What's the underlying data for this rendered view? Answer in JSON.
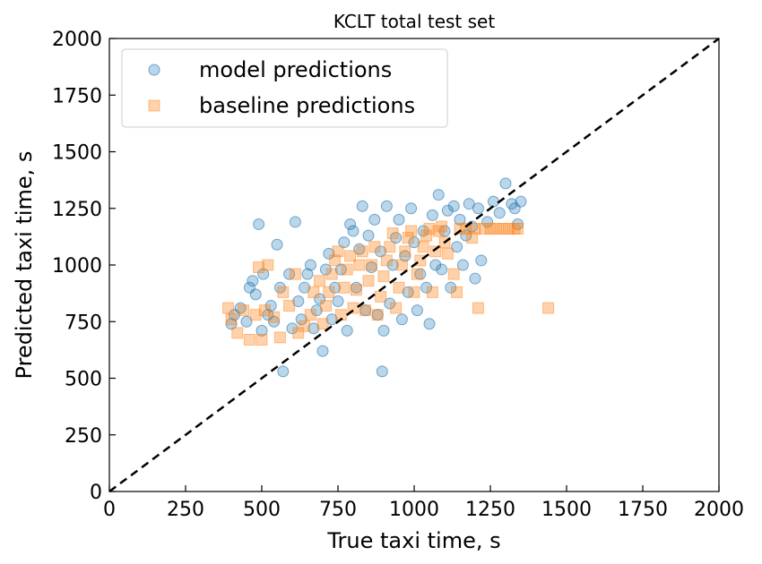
{
  "chart_data": {
    "type": "scatter",
    "title": "KCLT total test set",
    "xlabel": "True taxi time, s",
    "ylabel": "Predicted taxi time, s",
    "xlim": [
      0,
      2000
    ],
    "ylim": [
      0,
      2000
    ],
    "xticks": [
      "0",
      "250",
      "500",
      "750",
      "1000",
      "1250",
      "1500",
      "1750",
      "2000"
    ],
    "yticks": [
      "0",
      "250",
      "500",
      "750",
      "1000",
      "1250",
      "1500",
      "1750",
      "2000"
    ],
    "reference_line": {
      "type": "identity",
      "style": "dashed",
      "color": "#000000"
    },
    "legend_position": "upper-left",
    "grid": false,
    "series": [
      {
        "name": "model predictions",
        "marker": "circle",
        "color": "#1f77b4",
        "points": [
          [
            400,
            740
          ],
          [
            410,
            780
          ],
          [
            430,
            810
          ],
          [
            450,
            750
          ],
          [
            460,
            900
          ],
          [
            470,
            930
          ],
          [
            480,
            870
          ],
          [
            490,
            1180
          ],
          [
            500,
            710
          ],
          [
            505,
            960
          ],
          [
            520,
            780
          ],
          [
            530,
            820
          ],
          [
            540,
            750
          ],
          [
            550,
            1090
          ],
          [
            560,
            900
          ],
          [
            570,
            530
          ],
          [
            590,
            960
          ],
          [
            600,
            720
          ],
          [
            610,
            1190
          ],
          [
            620,
            840
          ],
          [
            630,
            760
          ],
          [
            640,
            900
          ],
          [
            650,
            960
          ],
          [
            660,
            1000
          ],
          [
            670,
            720
          ],
          [
            680,
            800
          ],
          [
            690,
            850
          ],
          [
            700,
            620
          ],
          [
            710,
            980
          ],
          [
            720,
            1050
          ],
          [
            730,
            760
          ],
          [
            740,
            900
          ],
          [
            750,
            840
          ],
          [
            760,
            980
          ],
          [
            770,
            1100
          ],
          [
            780,
            710
          ],
          [
            790,
            1180
          ],
          [
            800,
            1150
          ],
          [
            810,
            900
          ],
          [
            820,
            1070
          ],
          [
            830,
            1260
          ],
          [
            840,
            800
          ],
          [
            850,
            1130
          ],
          [
            860,
            990
          ],
          [
            870,
            1200
          ],
          [
            880,
            780
          ],
          [
            890,
            1060
          ],
          [
            895,
            530
          ],
          [
            900,
            710
          ],
          [
            910,
            1260
          ],
          [
            920,
            830
          ],
          [
            930,
            1000
          ],
          [
            940,
            1120
          ],
          [
            950,
            1200
          ],
          [
            960,
            760
          ],
          [
            970,
            1040
          ],
          [
            980,
            880
          ],
          [
            990,
            1250
          ],
          [
            1000,
            1100
          ],
          [
            1010,
            800
          ],
          [
            1020,
            960
          ],
          [
            1030,
            1150
          ],
          [
            1040,
            900
          ],
          [
            1050,
            740
          ],
          [
            1060,
            1220
          ],
          [
            1070,
            1000
          ],
          [
            1080,
            1310
          ],
          [
            1090,
            980
          ],
          [
            1100,
            1150
          ],
          [
            1110,
            1240
          ],
          [
            1120,
            900
          ],
          [
            1130,
            1260
          ],
          [
            1140,
            1080
          ],
          [
            1150,
            1200
          ],
          [
            1160,
            1000
          ],
          [
            1170,
            1130
          ],
          [
            1180,
            1270
          ],
          [
            1190,
            1170
          ],
          [
            1200,
            940
          ],
          [
            1210,
            1250
          ],
          [
            1220,
            1020
          ],
          [
            1240,
            1190
          ],
          [
            1260,
            1280
          ],
          [
            1280,
            1230
          ],
          [
            1300,
            1360
          ],
          [
            1320,
            1270
          ],
          [
            1330,
            1250
          ],
          [
            1340,
            1180
          ],
          [
            1350,
            1280
          ]
        ]
      },
      {
        "name": "baseline predictions",
        "marker": "square",
        "color": "#ff7f0e",
        "points": [
          [
            390,
            810
          ],
          [
            400,
            760
          ],
          [
            420,
            700
          ],
          [
            440,
            800
          ],
          [
            460,
            670
          ],
          [
            480,
            780
          ],
          [
            490,
            990
          ],
          [
            500,
            670
          ],
          [
            510,
            800
          ],
          [
            520,
            1000
          ],
          [
            540,
            770
          ],
          [
            560,
            680
          ],
          [
            570,
            880
          ],
          [
            590,
            820
          ],
          [
            610,
            960
          ],
          [
            620,
            700
          ],
          [
            640,
            730
          ],
          [
            660,
            780
          ],
          [
            670,
            880
          ],
          [
            690,
            930
          ],
          [
            700,
            740
          ],
          [
            710,
            820
          ],
          [
            720,
            880
          ],
          [
            730,
            960
          ],
          [
            740,
            1020
          ],
          [
            750,
            1060
          ],
          [
            760,
            780
          ],
          [
            770,
            900
          ],
          [
            780,
            980
          ],
          [
            790,
            1040
          ],
          [
            800,
            810
          ],
          [
            810,
            890
          ],
          [
            820,
            1000
          ],
          [
            830,
            1060
          ],
          [
            840,
            800
          ],
          [
            850,
            930
          ],
          [
            860,
            1000
          ],
          [
            870,
            1080
          ],
          [
            880,
            780
          ],
          [
            890,
            860
          ],
          [
            900,
            950
          ],
          [
            910,
            1020
          ],
          [
            920,
            1080
          ],
          [
            930,
            1140
          ],
          [
            940,
            810
          ],
          [
            950,
            900
          ],
          [
            960,
            1000
          ],
          [
            970,
            1060
          ],
          [
            980,
            1120
          ],
          [
            990,
            1150
          ],
          [
            1000,
            880
          ],
          [
            1010,
            960
          ],
          [
            1020,
            1020
          ],
          [
            1030,
            1080
          ],
          [
            1040,
            1130
          ],
          [
            1050,
            1160
          ],
          [
            1060,
            880
          ],
          [
            1070,
            1060
          ],
          [
            1080,
            1150
          ],
          [
            1090,
            1170
          ],
          [
            1100,
            1100
          ],
          [
            1110,
            1050
          ],
          [
            1130,
            960
          ],
          [
            1140,
            880
          ],
          [
            1150,
            1160
          ],
          [
            1170,
            1160
          ],
          [
            1190,
            1120
          ],
          [
            1200,
            1160
          ],
          [
            1210,
            810
          ],
          [
            1230,
            1160
          ],
          [
            1250,
            1160
          ],
          [
            1270,
            1160
          ],
          [
            1290,
            1160
          ],
          [
            1310,
            1160
          ],
          [
            1330,
            1160
          ],
          [
            1340,
            1160
          ],
          [
            1440,
            810
          ]
        ]
      }
    ]
  }
}
